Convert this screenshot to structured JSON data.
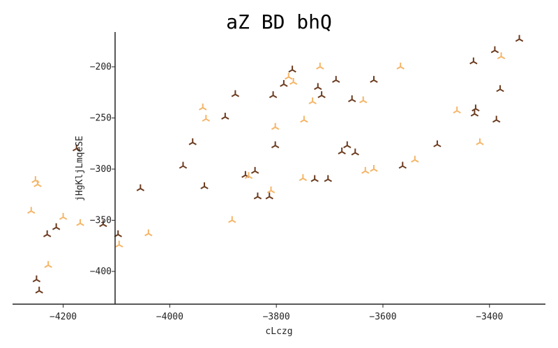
{
  "chart_data": {
    "type": "scatter",
    "title": "aZ BD bhQ",
    "xlabel": "cLczg",
    "ylabel": "jHgKljLmqeSE",
    "xlim": [
      -4295,
      -3295
    ],
    "ylim": [
      -432,
      -166
    ],
    "xticks": [
      -4200,
      -4000,
      -3800,
      -3600,
      -3400
    ],
    "xtick_labels": [
      "−4200",
      "−4000",
      "−3800",
      "−3600",
      "−3400"
    ],
    "yticks": [
      -400,
      -350,
      -300,
      -250,
      -200
    ],
    "ytick_labels": [
      "−400",
      "−350",
      "−300",
      "−250",
      "−200"
    ],
    "grid": false,
    "series": [
      {
        "color": "#6b3b1f",
        "marker": "tri_down",
        "points": [
          [
            -4250,
            -408
          ],
          [
            -4245,
            -419
          ],
          [
            -4230,
            -364
          ],
          [
            -4213,
            -357
          ],
          [
            -4125,
            -354
          ],
          [
            -4097,
            -364
          ],
          [
            -4055,
            -319
          ],
          [
            -3975,
            -297
          ],
          [
            -3957,
            -274
          ],
          [
            -3935,
            -317
          ],
          [
            -3896,
            -249
          ],
          [
            -3877,
            -227
          ],
          [
            -3858,
            -306
          ],
          [
            -3840,
            -302
          ],
          [
            -3835,
            -327
          ],
          [
            -3813,
            -327
          ],
          [
            -3806,
            -228
          ],
          [
            -3802,
            -277
          ],
          [
            -3786,
            -217
          ],
          [
            -3770,
            -203
          ],
          [
            -3728,
            -310
          ],
          [
            -3722,
            -220
          ],
          [
            -3715,
            -228
          ],
          [
            -3703,
            -310
          ],
          [
            -3688,
            -213
          ],
          [
            -3677,
            -283
          ],
          [
            -3667,
            -277
          ],
          [
            -3658,
            -232
          ],
          [
            -3652,
            -284
          ],
          [
            -3617,
            -213
          ],
          [
            -3563,
            -297
          ],
          [
            -3498,
            -276
          ],
          [
            -3430,
            -195
          ],
          [
            -3428,
            -246
          ],
          [
            -3426,
            -241
          ],
          [
            -3390,
            -184
          ],
          [
            -3387,
            -252
          ],
          [
            -3380,
            -222
          ],
          [
            -3344,
            -173
          ],
          [
            -4175,
            -280
          ]
        ]
      },
      {
        "color": "#f5b567",
        "marker": "tri_down",
        "points": [
          [
            -4260,
            -341
          ],
          [
            -4252,
            -311
          ],
          [
            -4248,
            -315
          ],
          [
            -4228,
            -394
          ],
          [
            -4200,
            -347
          ],
          [
            -4168,
            -353
          ],
          [
            -4095,
            -374
          ],
          [
            -4040,
            -363
          ],
          [
            -3938,
            -240
          ],
          [
            -3932,
            -251
          ],
          [
            -3883,
            -350
          ],
          [
            -3852,
            -307
          ],
          [
            -3810,
            -321
          ],
          [
            -3802,
            -259
          ],
          [
            -3777,
            -210
          ],
          [
            -3768,
            -215
          ],
          [
            -3750,
            -309
          ],
          [
            -3748,
            -252
          ],
          [
            -3732,
            -234
          ],
          [
            -3718,
            -200
          ],
          [
            -3637,
            -233
          ],
          [
            -3633,
            -302
          ],
          [
            -3617,
            -300
          ],
          [
            -3567,
            -200
          ],
          [
            -3540,
            -291
          ],
          [
            -3461,
            -243
          ],
          [
            -3418,
            -274
          ],
          [
            -3378,
            -190
          ]
        ]
      }
    ]
  }
}
